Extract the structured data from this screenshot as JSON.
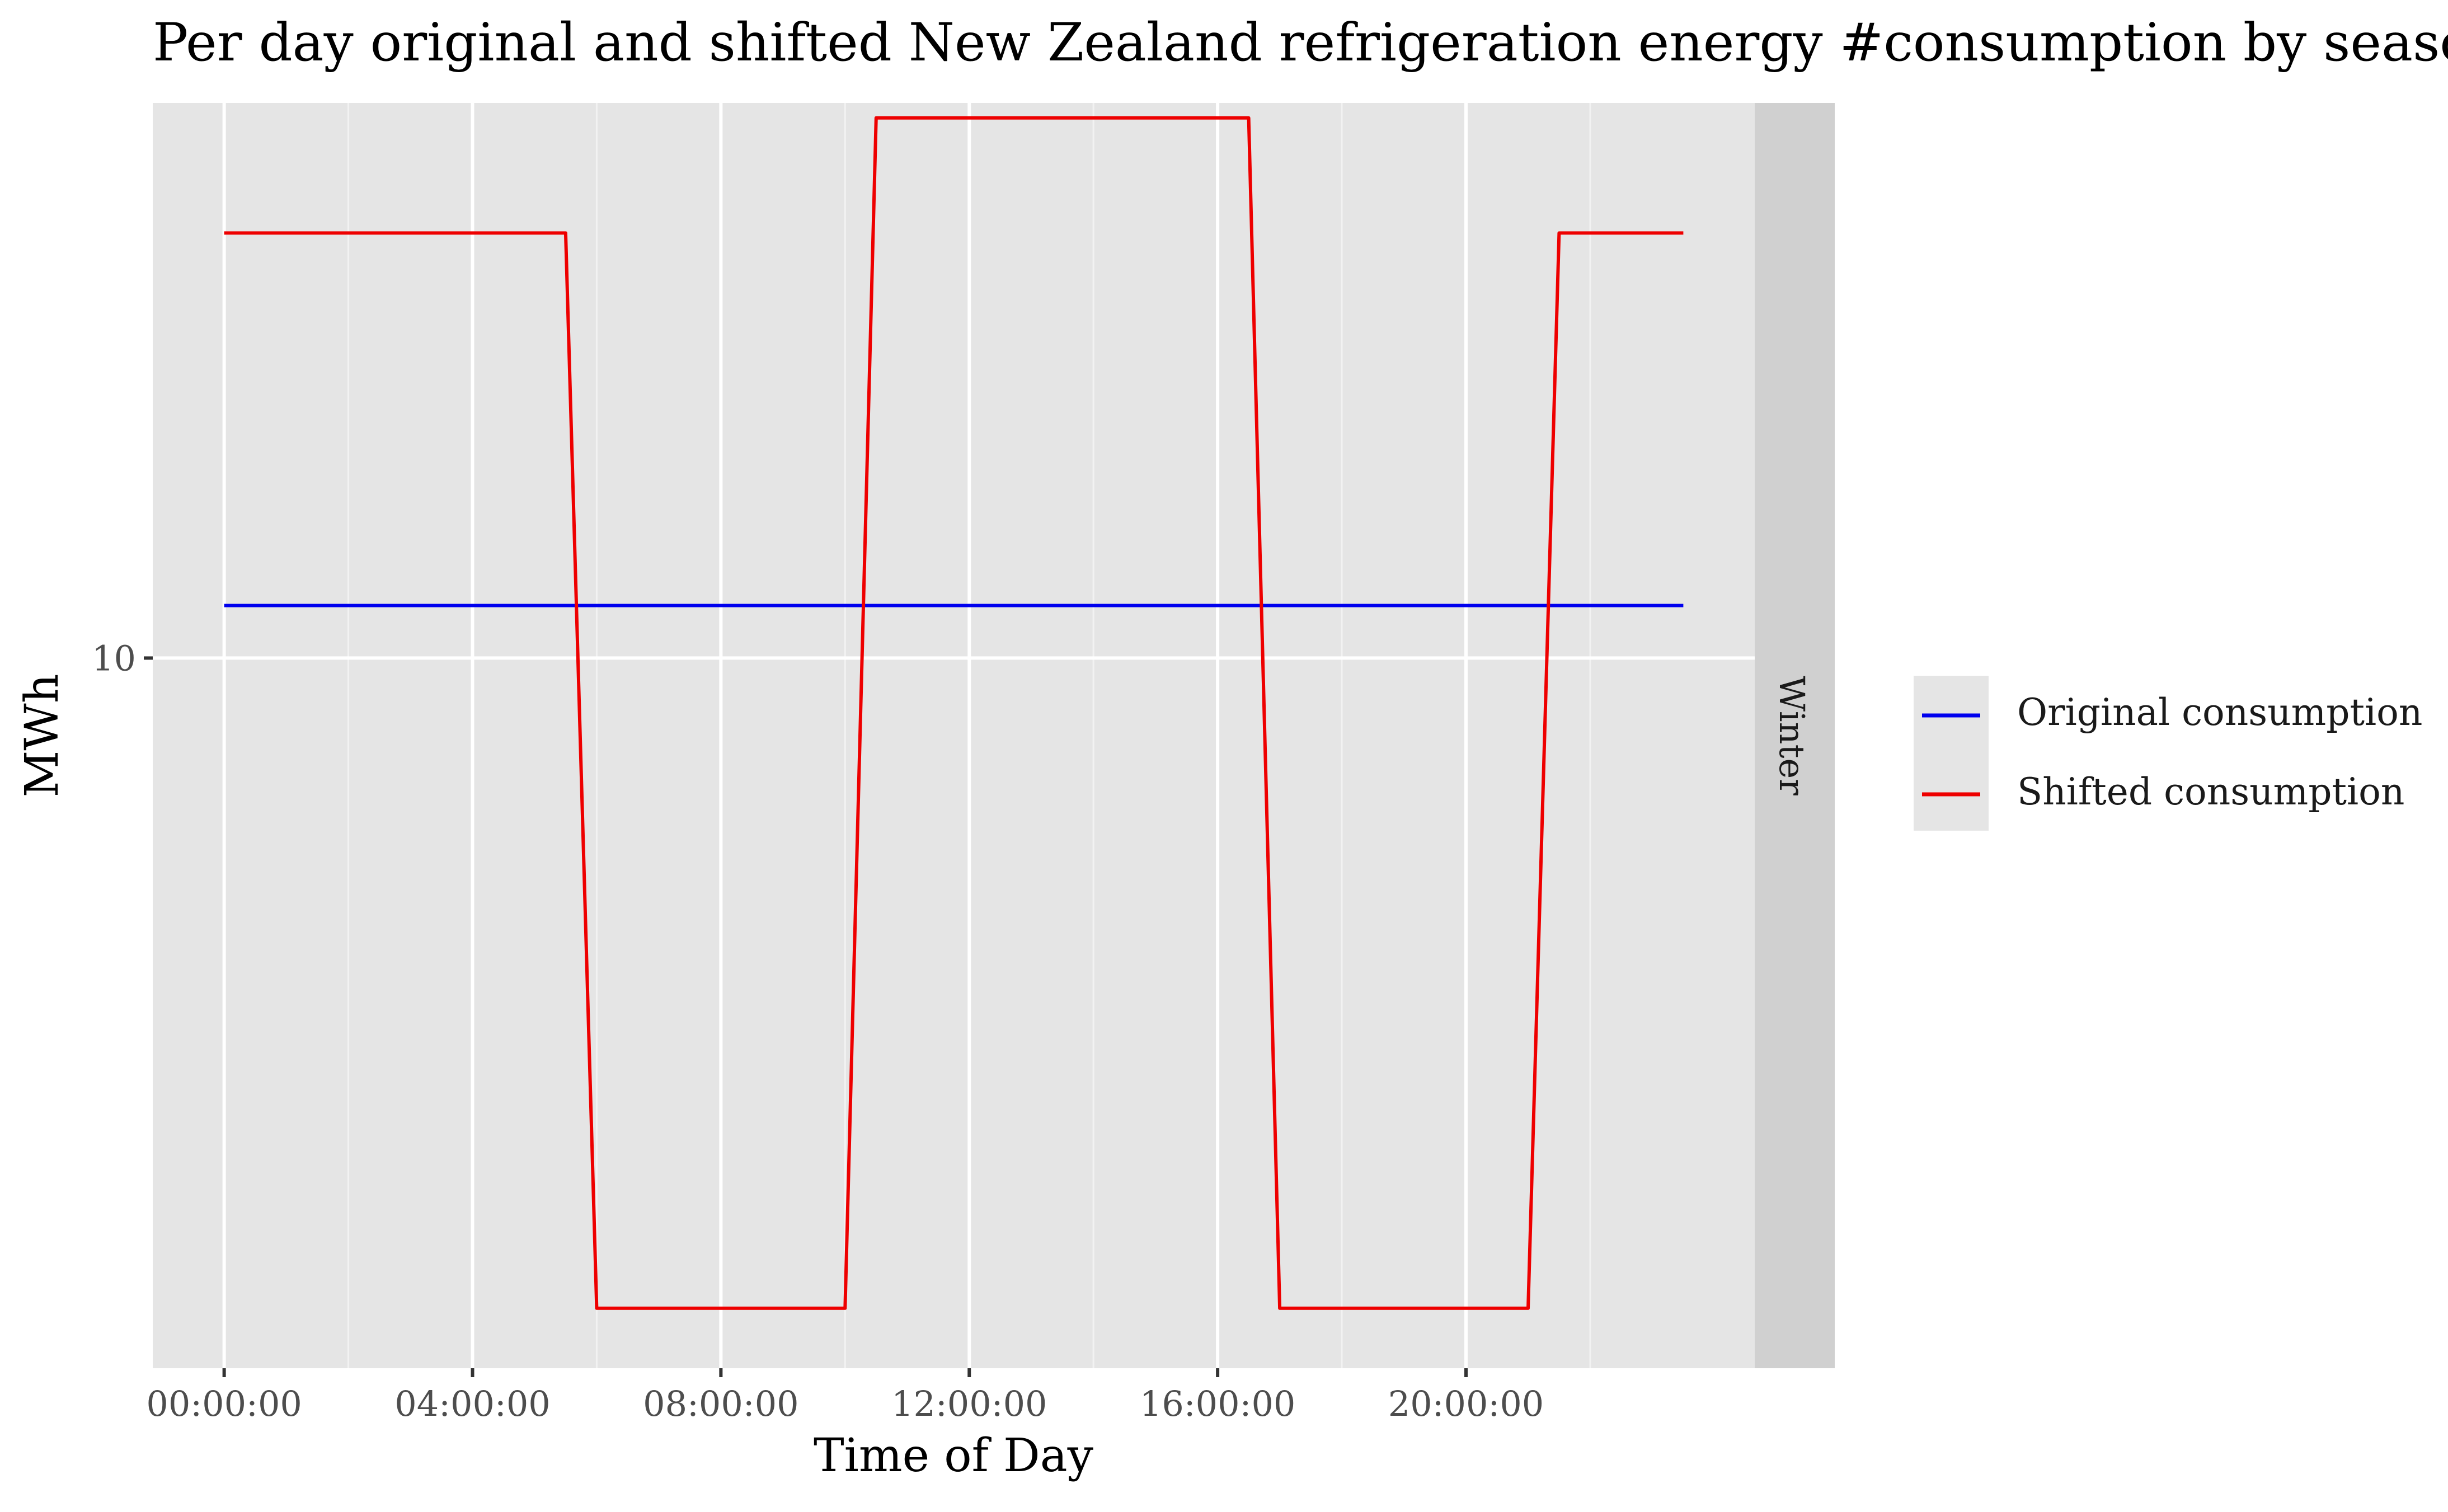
{
  "chart_data": {
    "type": "line",
    "title": "Per day original and shifted New Zealand refrigeration energy #consumption by season",
    "xlabel": "Time of Day",
    "ylabel": "MWh",
    "x_ticks": [
      "00:00:00",
      "04:00:00",
      "08:00:00",
      "12:00:00",
      "16:00:00",
      "20:00:00"
    ],
    "y_ticks": [
      "10"
    ],
    "y_tick_values": [
      10
    ],
    "xlim_hours": [
      -1.15,
      24.65
    ],
    "ylim": [
      7.16,
      12.22
    ],
    "facet_label": "Winter",
    "grid": true,
    "legend_position": "right",
    "x_hours": [
      0,
      0.5,
      1,
      1.5,
      2,
      2.5,
      3,
      3.5,
      4,
      4.5,
      5,
      5.5,
      6,
      6.5,
      7,
      7.5,
      8,
      8.5,
      9,
      9.5,
      10,
      10.5,
      11,
      11.5,
      12,
      12.5,
      13,
      13.5,
      14,
      14.5,
      15,
      15.5,
      16,
      16.5,
      17,
      17.5,
      18,
      18.5,
      19,
      19.5,
      20,
      20.5,
      21,
      21.5,
      22,
      22.5,
      23,
      23.5
    ],
    "series": [
      {
        "name": "Original consumption",
        "color": "#0000ee",
        "values": [
          10.21,
          10.21,
          10.21,
          10.21,
          10.21,
          10.21,
          10.21,
          10.21,
          10.21,
          10.21,
          10.21,
          10.21,
          10.21,
          10.21,
          10.21,
          10.21,
          10.21,
          10.21,
          10.21,
          10.21,
          10.21,
          10.21,
          10.21,
          10.21,
          10.21,
          10.21,
          10.21,
          10.21,
          10.21,
          10.21,
          10.21,
          10.21,
          10.21,
          10.21,
          10.21,
          10.21,
          10.21,
          10.21,
          10.21,
          10.21,
          10.21,
          10.21,
          10.21,
          10.21,
          10.21,
          10.21,
          10.21,
          10.21
        ]
      },
      {
        "name": "Shifted consumption",
        "color": "#ee0000",
        "values": [
          11.7,
          11.7,
          11.7,
          11.7,
          11.7,
          11.7,
          11.7,
          11.7,
          11.7,
          11.7,
          11.7,
          11.7,
          7.4,
          7.4,
          7.4,
          7.4,
          7.4,
          7.4,
          7.4,
          7.4,
          7.4,
          12.16,
          12.16,
          12.16,
          12.16,
          12.16,
          12.16,
          12.16,
          12.16,
          12.16,
          12.16,
          12.16,
          12.16,
          12.16,
          7.4,
          7.4,
          7.4,
          7.4,
          7.4,
          7.4,
          7.4,
          7.4,
          7.4,
          11.7,
          11.7,
          11.7,
          11.7,
          11.7
        ]
      }
    ]
  }
}
